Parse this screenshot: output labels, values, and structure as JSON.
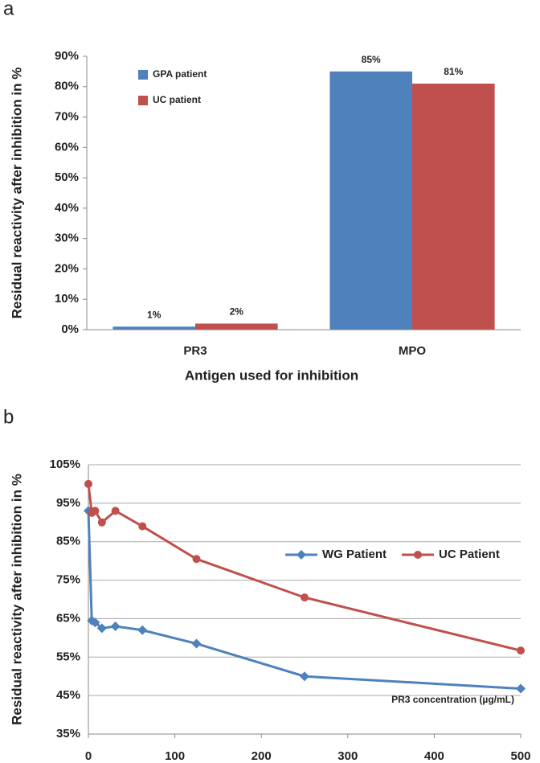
{
  "chart_data": [
    {
      "type": "bar",
      "panel": "a",
      "y_label": "Residual reactivity after inhibition in %",
      "x_label": "Antigen used for inhibition",
      "categories": [
        "PR3",
        "MPO"
      ],
      "series": [
        {
          "name": "GPA patient",
          "color": "#4f81bd",
          "values": [
            1,
            85
          ],
          "value_labels": [
            "1%",
            "85%"
          ]
        },
        {
          "name": "UC patient",
          "color": "#c0504d",
          "values": [
            2,
            81
          ],
          "value_labels": [
            "2%",
            "81%"
          ]
        }
      ],
      "ylim": [
        0,
        90
      ],
      "yticks": [
        {
          "value": 0,
          "label": "0%"
        },
        {
          "value": 10,
          "label": "10%"
        },
        {
          "value": 20,
          "label": "20%"
        },
        {
          "value": 30,
          "label": "30%"
        },
        {
          "value": 40,
          "label": "40%"
        },
        {
          "value": 50,
          "label": "50%"
        },
        {
          "value": 60,
          "label": "60%"
        },
        {
          "value": 70,
          "label": "70%"
        },
        {
          "value": 80,
          "label": "80%"
        },
        {
          "value": 90,
          "label": "90%"
        }
      ],
      "grid": false,
      "legend": "top-left"
    },
    {
      "type": "line",
      "panel": "b",
      "y_label": "Residual reactivity after inhibition in %",
      "annotation": "PR3 concentration  (µg/mL)",
      "x": [
        0,
        3.9,
        7.8,
        15.6,
        31.25,
        62.5,
        125,
        250,
        500
      ],
      "series": [
        {
          "name": "WG Patient",
          "color": "#4f81bd",
          "marker": "diamond",
          "values": [
            93,
            64.5,
            64,
            62.5,
            63,
            62,
            58.5,
            50,
            46.8
          ]
        },
        {
          "name": "UC Patient",
          "color": "#c0504d",
          "marker": "circle",
          "values": [
            100,
            92.5,
            93,
            90,
            93,
            89,
            80.5,
            70.5,
            56.7
          ]
        }
      ],
      "xlim": [
        0,
        500
      ],
      "xticks": [
        0,
        100,
        200,
        300,
        400,
        500
      ],
      "ylim": [
        35,
        105
      ],
      "yticks": [
        {
          "value": 35,
          "label": "35%"
        },
        {
          "value": 45,
          "label": "45%"
        },
        {
          "value": 55,
          "label": "55%"
        },
        {
          "value": 65,
          "label": "65%"
        },
        {
          "value": 75,
          "label": "75%"
        },
        {
          "value": 85,
          "label": "85%"
        },
        {
          "value": 95,
          "label": "95%"
        },
        {
          "value": 105,
          "label": "105%"
        }
      ],
      "grid": true,
      "legend": "right"
    }
  ]
}
